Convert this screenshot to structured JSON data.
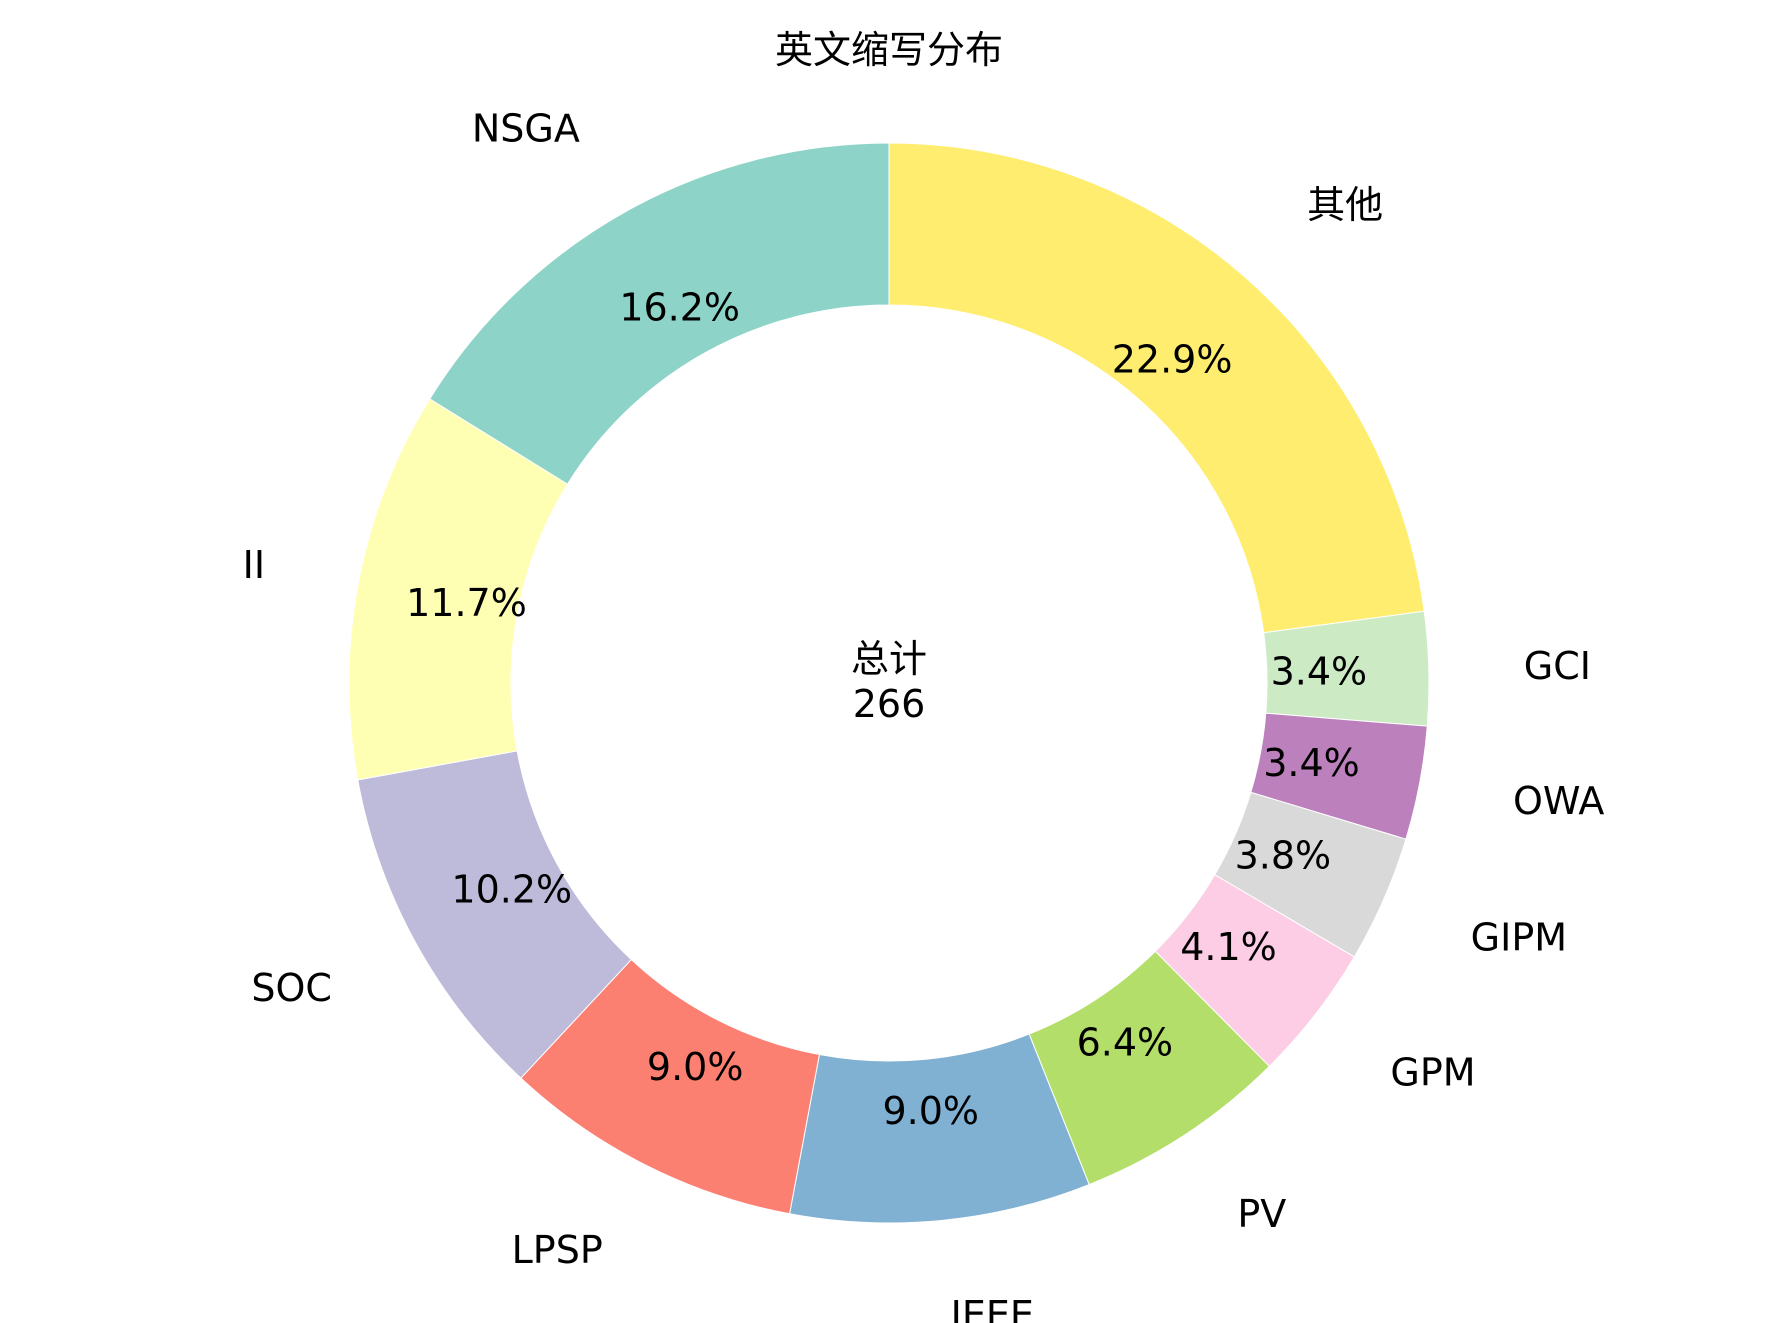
{
  "chart_data": {
    "type": "pie",
    "variant": "donut",
    "title": "英文缩写分布",
    "center_label": "总计",
    "center_value": "266",
    "categories": [
      "其他",
      "GCI",
      "OWA",
      "GIPM",
      "GPM",
      "PV",
      "IEEE",
      "LPSP",
      "SOC",
      "II",
      "NSGA"
    ],
    "values": [
      22.9,
      3.4,
      3.4,
      3.8,
      4.1,
      6.4,
      9.0,
      9.0,
      10.2,
      11.7,
      16.2
    ],
    "value_labels": [
      "22.9%",
      "3.4%",
      "3.4%",
      "3.8%",
      "4.1%",
      "6.4%",
      "9.0%",
      "9.0%",
      "10.2%",
      "11.7%",
      "16.2%"
    ],
    "colors": [
      "#ffed6f",
      "#ccebc5",
      "#bc80bd",
      "#d9d9d9",
      "#fccde5",
      "#b3de69",
      "#80b1d3",
      "#fb8072",
      "#bebada",
      "#ffffb3",
      "#8dd3c7"
    ],
    "start_angle": "top",
    "direction": "clockwise"
  }
}
